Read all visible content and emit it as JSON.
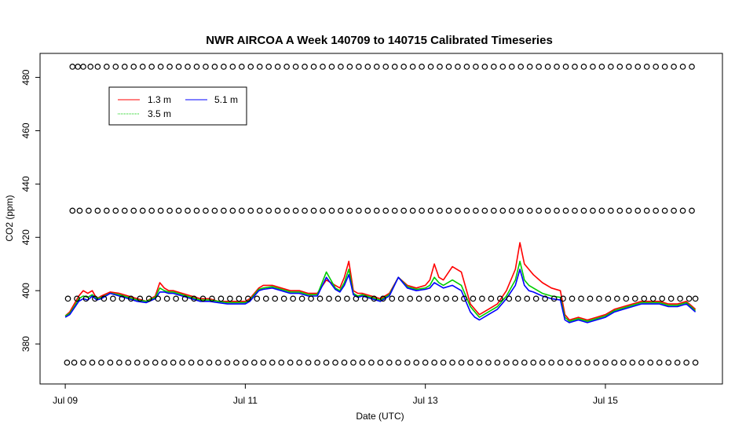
{
  "chart_data": {
    "type": "line",
    "title": "NWR AIRCOA A  Week 140709 to 140715  Calibrated Timeseries",
    "xlabel": "Date (UTC)",
    "ylabel": "CO2 (ppm)",
    "x_ticks": [
      {
        "x": 0,
        "label": "Jul 09"
      },
      {
        "x": 2,
        "label": "Jul 11"
      },
      {
        "x": 4,
        "label": "Jul 13"
      },
      {
        "x": 6,
        "label": "Jul 15"
      }
    ],
    "y_ticks": [
      380,
      400,
      420,
      440,
      460,
      480
    ],
    "xlim": [
      -0.28,
      7.3
    ],
    "ylim": [
      365,
      489
    ],
    "grid": false,
    "legend_position": "top-left",
    "series": [
      {
        "name": "1.3 m",
        "color": "#ff0000",
        "x": [
          0.0,
          0.05,
          0.1,
          0.15,
          0.2,
          0.25,
          0.3,
          0.35,
          0.4,
          0.5,
          0.6,
          0.7,
          0.8,
          0.9,
          1.0,
          1.05,
          1.1,
          1.15,
          1.2,
          1.3,
          1.4,
          1.5,
          1.6,
          1.7,
          1.8,
          1.9,
          2.0,
          2.05,
          2.1,
          2.15,
          2.2,
          2.3,
          2.4,
          2.5,
          2.6,
          2.7,
          2.8,
          2.9,
          3.0,
          3.05,
          3.1,
          3.15,
          3.2,
          3.25,
          3.3,
          3.4,
          3.5,
          3.6,
          3.7,
          3.8,
          3.9,
          4.0,
          4.05,
          4.1,
          4.15,
          4.2,
          4.3,
          4.4,
          4.5,
          4.55,
          4.6,
          4.7,
          4.8,
          4.9,
          5.0,
          5.05,
          5.1,
          5.15,
          5.2,
          5.3,
          5.4,
          5.5,
          5.55,
          5.6,
          5.7,
          5.8,
          5.9,
          6.0,
          6.1,
          6.2,
          6.3,
          6.4,
          6.5,
          6.6,
          6.7,
          6.8,
          6.9,
          7.0
        ],
        "y": [
          390.5,
          392,
          395,
          398,
          400,
          399,
          400,
          397,
          398,
          399.5,
          399,
          398,
          397,
          396,
          398,
          403,
          401,
          400,
          400,
          399,
          398,
          397,
          397,
          396,
          396,
          396,
          396,
          397,
          399,
          401,
          402,
          402,
          401,
          400,
          400,
          399,
          399,
          404,
          402,
          401,
          405,
          411,
          400,
          399,
          399,
          398,
          397,
          399,
          405,
          402,
          401,
          402,
          404,
          410,
          405,
          404,
          409,
          407,
          395,
          393,
          391,
          393,
          395,
          400,
          408,
          418,
          410,
          408,
          406,
          403,
          401,
          400,
          391,
          389,
          390,
          389,
          390,
          391,
          393,
          394,
          395,
          396,
          396,
          396,
          395,
          395,
          396,
          393
        ]
      },
      {
        "name": "3.5 m",
        "color": "#00cc00",
        "x": [
          0.0,
          0.05,
          0.1,
          0.15,
          0.2,
          0.25,
          0.3,
          0.35,
          0.4,
          0.5,
          0.6,
          0.7,
          0.8,
          0.9,
          1.0,
          1.05,
          1.1,
          1.15,
          1.2,
          1.3,
          1.4,
          1.5,
          1.6,
          1.7,
          1.8,
          1.9,
          2.0,
          2.05,
          2.1,
          2.15,
          2.2,
          2.3,
          2.4,
          2.5,
          2.6,
          2.7,
          2.8,
          2.9,
          3.0,
          3.05,
          3.1,
          3.15,
          3.2,
          3.25,
          3.3,
          3.4,
          3.5,
          3.6,
          3.7,
          3.8,
          3.9,
          4.0,
          4.05,
          4.1,
          4.15,
          4.2,
          4.3,
          4.4,
          4.5,
          4.55,
          4.6,
          4.7,
          4.8,
          4.9,
          5.0,
          5.05,
          5.1,
          5.15,
          5.2,
          5.3,
          5.4,
          5.5,
          5.55,
          5.6,
          5.7,
          5.8,
          5.9,
          6.0,
          6.1,
          6.2,
          6.3,
          6.4,
          6.5,
          6.6,
          6.7,
          6.8,
          6.9,
          7.0
        ],
        "y": [
          390.5,
          391.5,
          394,
          397,
          398,
          397.5,
          398.5,
          397,
          397.5,
          399,
          398.5,
          397.5,
          396.5,
          396,
          397.5,
          401,
          400,
          399.5,
          399.5,
          398.5,
          397.5,
          396.5,
          396.5,
          396,
          395.5,
          395.5,
          395.5,
          396.5,
          398.5,
          400.5,
          401,
          401.5,
          400.5,
          399.5,
          399.5,
          398.5,
          398.5,
          407,
          401,
          400,
          403,
          408,
          399,
          398,
          398.5,
          397.5,
          396.5,
          398.5,
          405,
          401.5,
          400.5,
          401,
          402,
          405,
          403,
          402,
          404,
          402,
          394,
          392,
          390,
          392,
          394,
          398,
          404,
          411,
          404,
          402,
          401,
          399,
          398,
          397.5,
          390,
          388.5,
          389.5,
          388.5,
          389.5,
          390.5,
          392.5,
          393.5,
          394.5,
          395.5,
          395.5,
          395.5,
          394.5,
          394.5,
          395.5,
          392.5
        ]
      },
      {
        "name": "5.1 m",
        "color": "#0000ff",
        "x": [
          0.0,
          0.05,
          0.1,
          0.15,
          0.2,
          0.25,
          0.3,
          0.35,
          0.4,
          0.5,
          0.6,
          0.7,
          0.8,
          0.9,
          1.0,
          1.05,
          1.1,
          1.15,
          1.2,
          1.3,
          1.4,
          1.5,
          1.6,
          1.7,
          1.8,
          1.9,
          2.0,
          2.05,
          2.1,
          2.15,
          2.2,
          2.3,
          2.4,
          2.5,
          2.6,
          2.7,
          2.8,
          2.9,
          3.0,
          3.05,
          3.1,
          3.15,
          3.2,
          3.25,
          3.3,
          3.4,
          3.5,
          3.6,
          3.7,
          3.8,
          3.9,
          4.0,
          4.05,
          4.1,
          4.15,
          4.2,
          4.3,
          4.4,
          4.5,
          4.55,
          4.6,
          4.7,
          4.8,
          4.9,
          5.0,
          5.05,
          5.1,
          5.15,
          5.2,
          5.3,
          5.4,
          5.5,
          5.55,
          5.6,
          5.7,
          5.8,
          5.9,
          6.0,
          6.1,
          6.2,
          6.3,
          6.4,
          6.5,
          6.6,
          6.7,
          6.8,
          6.9,
          7.0
        ],
        "y": [
          390,
          391,
          393.5,
          396,
          397,
          396.5,
          398,
          396.5,
          397,
          399,
          398,
          397,
          396,
          395.5,
          397,
          399.5,
          399.5,
          399,
          399,
          398,
          397,
          396,
          396,
          395.5,
          395,
          395,
          395,
          396,
          398,
          400,
          400.5,
          401,
          400,
          399,
          399,
          398,
          398,
          405,
          400.5,
          399.5,
          402,
          406,
          398.5,
          397.5,
          398,
          397,
          396,
          398,
          405,
          401,
          400,
          400.5,
          401,
          403,
          402,
          401,
          402,
          400,
          392,
          390,
          389,
          391,
          393,
          397,
          402,
          408,
          402,
          400,
          399.5,
          398,
          397,
          396.5,
          389,
          388,
          389,
          388,
          389,
          390,
          392,
          393,
          394,
          395,
          395,
          395,
          394,
          394,
          395,
          392
        ]
      },
      {
        "name": "",
        "type": "scatter",
        "color": "#000000",
        "x": [
          0.08,
          0.14,
          0.2,
          0.28,
          0.36,
          0.46,
          0.56,
          0.66,
          0.76,
          0.86,
          0.96,
          1.06,
          1.16,
          1.26,
          1.36,
          1.46,
          1.56,
          1.66,
          1.76,
          1.86,
          1.96,
          2.06,
          2.16,
          2.26,
          2.36,
          2.46,
          2.56,
          2.66,
          2.76,
          2.86,
          2.96,
          3.06,
          3.16,
          3.26,
          3.36,
          3.46,
          3.56,
          3.66,
          3.76,
          3.86,
          3.96,
          4.06,
          4.16,
          4.26,
          4.36,
          4.46,
          4.56,
          4.66,
          4.76,
          4.86,
          4.96,
          5.06,
          5.16,
          5.26,
          5.36,
          5.46,
          5.56,
          5.66,
          5.76,
          5.86,
          5.96,
          6.06,
          6.16,
          6.26,
          6.36,
          6.46,
          6.56,
          6.66,
          6.76,
          6.86,
          6.96
        ],
        "y": [
          484,
          484,
          484,
          484,
          484,
          484,
          484,
          484,
          484,
          484,
          484,
          484,
          484,
          484,
          484,
          484,
          484,
          484,
          484,
          484,
          484,
          484,
          484,
          484,
          484,
          484,
          484,
          484,
          484,
          484,
          484,
          484,
          484,
          484,
          484,
          484,
          484,
          484,
          484,
          484,
          484,
          484,
          484,
          484,
          484,
          484,
          484,
          484,
          484,
          484,
          484,
          484,
          484,
          484,
          484,
          484,
          484,
          484,
          484,
          484,
          484,
          484,
          484,
          484,
          484,
          484,
          484,
          484,
          484,
          484,
          484
        ]
      },
      {
        "name": "",
        "type": "scatter",
        "color": "#000000",
        "x": [
          0.08,
          0.16,
          0.26,
          0.36,
          0.46,
          0.56,
          0.66,
          0.76,
          0.86,
          0.96,
          1.06,
          1.16,
          1.26,
          1.36,
          1.46,
          1.56,
          1.66,
          1.76,
          1.86,
          1.96,
          2.06,
          2.16,
          2.26,
          2.36,
          2.46,
          2.56,
          2.66,
          2.76,
          2.86,
          2.96,
          3.06,
          3.16,
          3.26,
          3.36,
          3.46,
          3.56,
          3.66,
          3.76,
          3.86,
          3.96,
          4.06,
          4.16,
          4.26,
          4.36,
          4.46,
          4.56,
          4.66,
          4.76,
          4.86,
          4.96,
          5.06,
          5.16,
          5.26,
          5.36,
          5.46,
          5.56,
          5.66,
          5.76,
          5.86,
          5.96,
          6.06,
          6.16,
          6.26,
          6.36,
          6.46,
          6.56,
          6.66,
          6.76,
          6.86,
          6.96
        ],
        "y": [
          430,
          430,
          430,
          430,
          430,
          430,
          430,
          430,
          430,
          430,
          430,
          430,
          430,
          430,
          430,
          430,
          430,
          430,
          430,
          430,
          430,
          430,
          430,
          430,
          430,
          430,
          430,
          430,
          430,
          430,
          430,
          430,
          430,
          430,
          430,
          430,
          430,
          430,
          430,
          430,
          430,
          430,
          430,
          430,
          430,
          430,
          430,
          430,
          430,
          430,
          430,
          430,
          430,
          430,
          430,
          430,
          430,
          430,
          430,
          430,
          430,
          430,
          430,
          430,
          430,
          430,
          430,
          430,
          430,
          430
        ]
      },
      {
        "name": "",
        "type": "scatter",
        "color": "#000000",
        "x": [
          0.03,
          0.13,
          0.23,
          0.33,
          0.43,
          0.53,
          0.63,
          0.73,
          0.83,
          0.93,
          1.03,
          1.13,
          1.23,
          1.33,
          1.43,
          1.53,
          1.63,
          1.73,
          1.83,
          1.93,
          2.03,
          2.13,
          2.23,
          2.33,
          2.43,
          2.53,
          2.63,
          2.73,
          2.83,
          2.93,
          3.03,
          3.13,
          3.23,
          3.33,
          3.43,
          3.53,
          3.63,
          3.73,
          3.83,
          3.93,
          4.03,
          4.13,
          4.23,
          4.33,
          4.43,
          4.53,
          4.63,
          4.73,
          4.83,
          4.93,
          5.03,
          5.13,
          5.23,
          5.33,
          5.43,
          5.53,
          5.63,
          5.73,
          5.83,
          5.93,
          6.03,
          6.13,
          6.23,
          6.33,
          6.43,
          6.53,
          6.63,
          6.73,
          6.83,
          6.93,
          7.0
        ],
        "y": [
          397,
          397,
          397,
          397,
          397,
          397,
          397,
          397,
          397,
          397,
          397,
          397,
          397,
          397,
          397,
          397,
          397,
          397,
          397,
          397,
          397,
          397,
          397,
          397,
          397,
          397,
          397,
          397,
          397,
          397,
          397,
          397,
          397,
          397,
          397,
          397,
          397,
          397,
          397,
          397,
          397,
          397,
          397,
          397,
          397,
          397,
          397,
          397,
          397,
          397,
          397,
          397,
          397,
          397,
          397,
          397,
          397,
          397,
          397,
          397,
          397,
          397,
          397,
          397,
          397,
          397,
          397,
          397,
          397,
          397,
          397
        ]
      },
      {
        "name": "",
        "type": "scatter",
        "color": "#000000",
        "x": [
          0.02,
          0.1,
          0.2,
          0.3,
          0.4,
          0.5,
          0.6,
          0.7,
          0.8,
          0.9,
          1.0,
          1.1,
          1.2,
          1.3,
          1.4,
          1.5,
          1.6,
          1.7,
          1.8,
          1.9,
          2.0,
          2.1,
          2.2,
          2.3,
          2.4,
          2.5,
          2.6,
          2.7,
          2.8,
          2.9,
          3.0,
          3.1,
          3.2,
          3.3,
          3.4,
          3.5,
          3.6,
          3.7,
          3.8,
          3.9,
          4.0,
          4.1,
          4.2,
          4.3,
          4.4,
          4.5,
          4.6,
          4.7,
          4.8,
          4.9,
          5.0,
          5.1,
          5.2,
          5.3,
          5.4,
          5.5,
          5.6,
          5.7,
          5.8,
          5.9,
          6.0,
          6.1,
          6.2,
          6.3,
          6.4,
          6.5,
          6.6,
          6.7,
          6.8,
          6.9,
          7.0
        ],
        "y": [
          373,
          373,
          373,
          373,
          373,
          373,
          373,
          373,
          373,
          373,
          373,
          373,
          373,
          373,
          373,
          373,
          373,
          373,
          373,
          373,
          373,
          373,
          373,
          373,
          373,
          373,
          373,
          373,
          373,
          373,
          373,
          373,
          373,
          373,
          373,
          373,
          373,
          373,
          373,
          373,
          373,
          373,
          373,
          373,
          373,
          373,
          373,
          373,
          373,
          373,
          373,
          373,
          373,
          373,
          373,
          373,
          373,
          373,
          373,
          373,
          373,
          373,
          373,
          373,
          373,
          373,
          373,
          373,
          373,
          373,
          373
        ]
      }
    ]
  }
}
